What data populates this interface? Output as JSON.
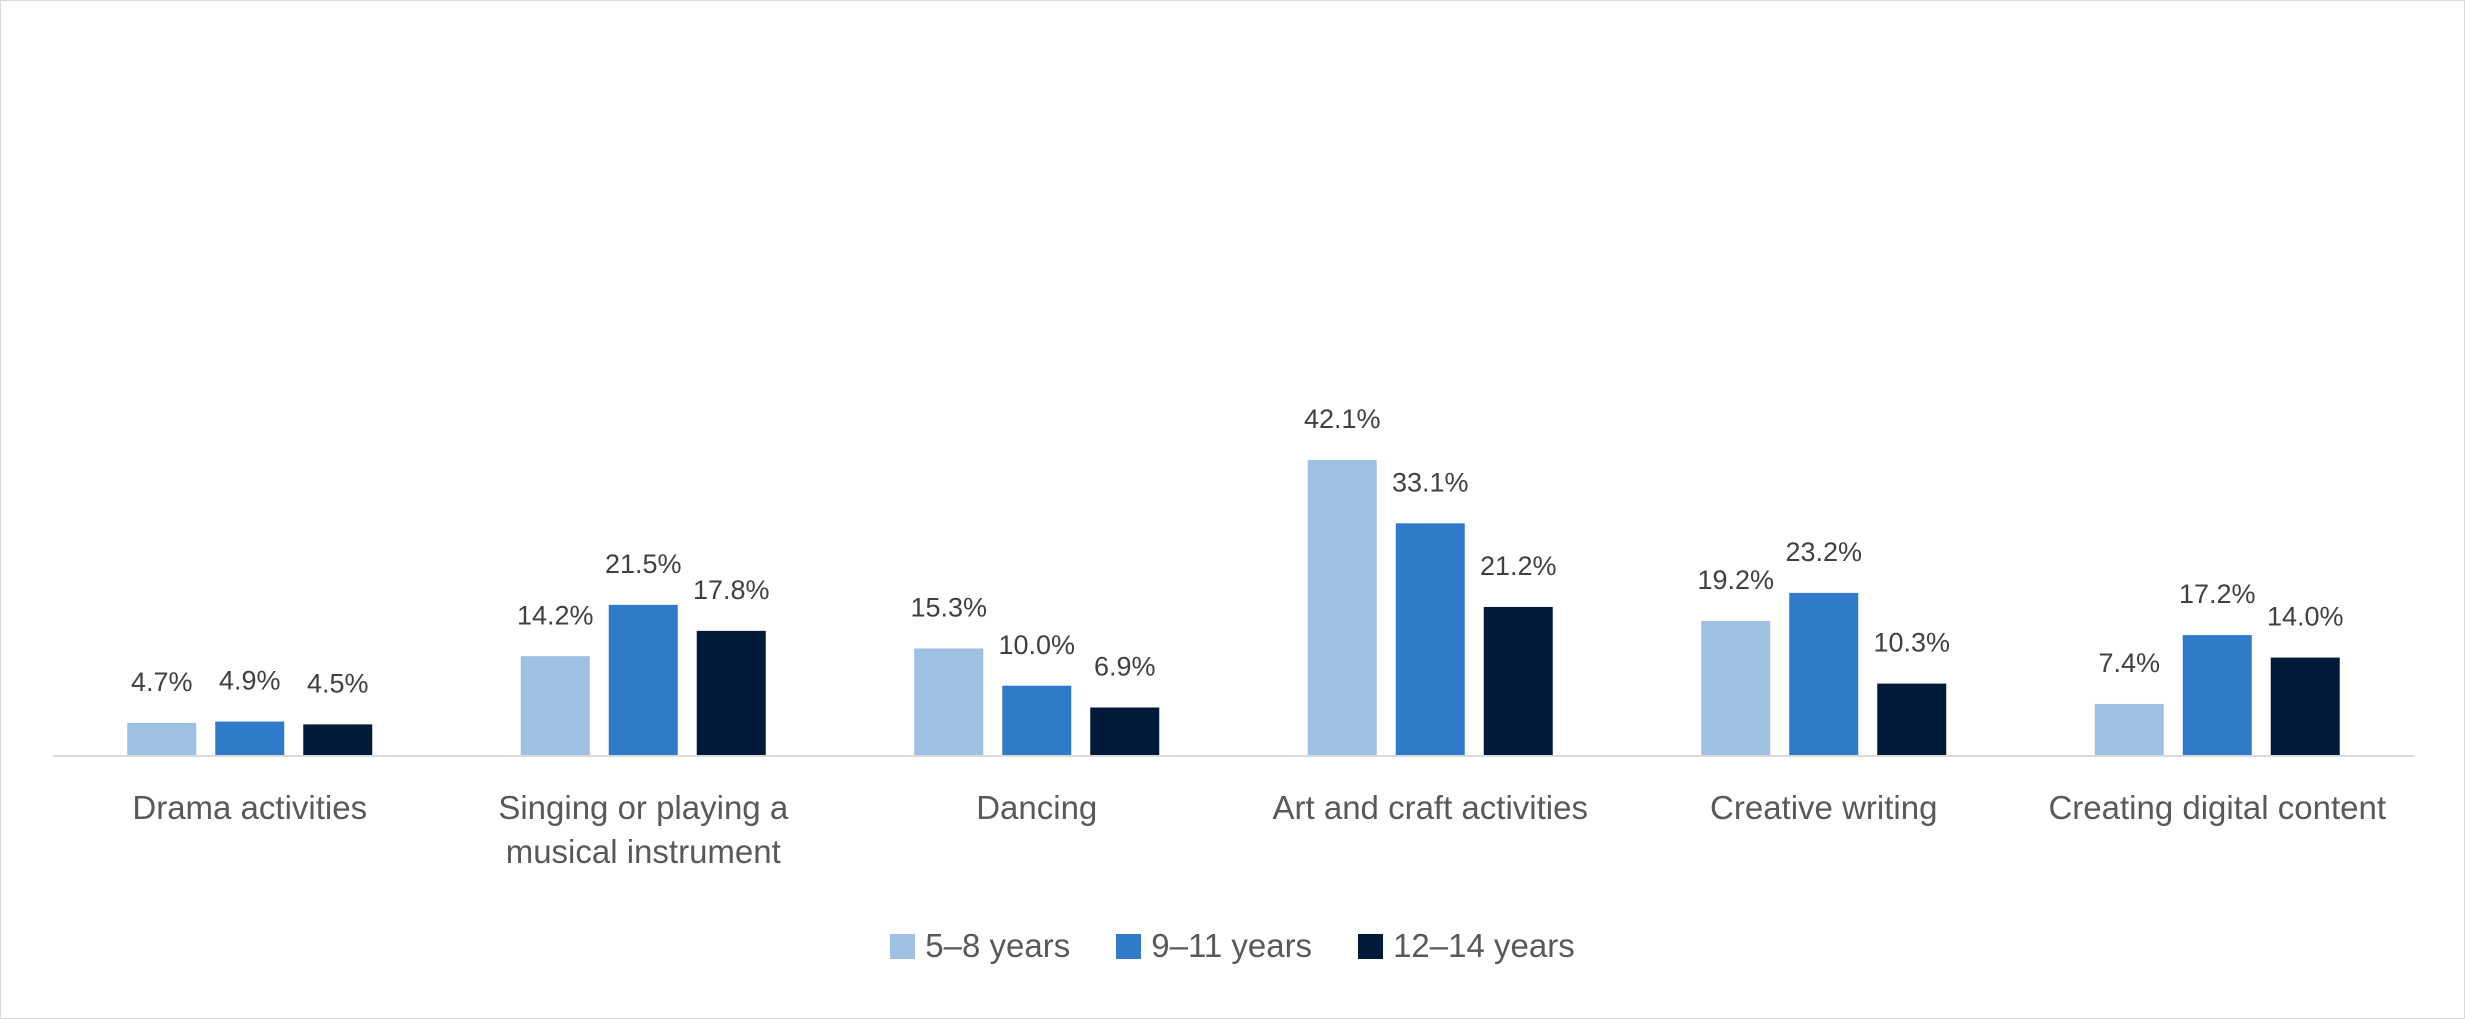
{
  "chart_data": {
    "type": "bar",
    "categories": [
      "Drama activities",
      "Singing or playing a musical instrument",
      "Dancing",
      "Art and craft activities",
      "Creative writing",
      "Creating digital content"
    ],
    "series": [
      {
        "name": "5–8 years",
        "color": "#9dc0e3",
        "values": [
          4.7,
          14.2,
          15.3,
          42.1,
          19.2,
          7.4
        ],
        "value_labels": [
          "4.7%",
          "14.2%",
          "15.3%",
          "42.1%",
          "19.2%",
          "7.4%"
        ]
      },
      {
        "name": "9–11 years",
        "color": "#2f7bc9",
        "values": [
          4.9,
          21.5,
          10.0,
          33.1,
          23.2,
          17.2
        ],
        "value_labels": [
          "4.9%",
          "21.5%",
          "10.0%",
          "33.1%",
          "23.2%",
          "17.2%"
        ]
      },
      {
        "name": "12–14 years",
        "color": "#011a3a",
        "values": [
          4.5,
          17.8,
          6.9,
          21.2,
          10.3,
          14.0
        ],
        "value_labels": [
          "4.5%",
          "17.8%",
          "6.9%",
          "21.2%",
          "10.3%",
          "14.0%"
        ]
      }
    ]
  }
}
